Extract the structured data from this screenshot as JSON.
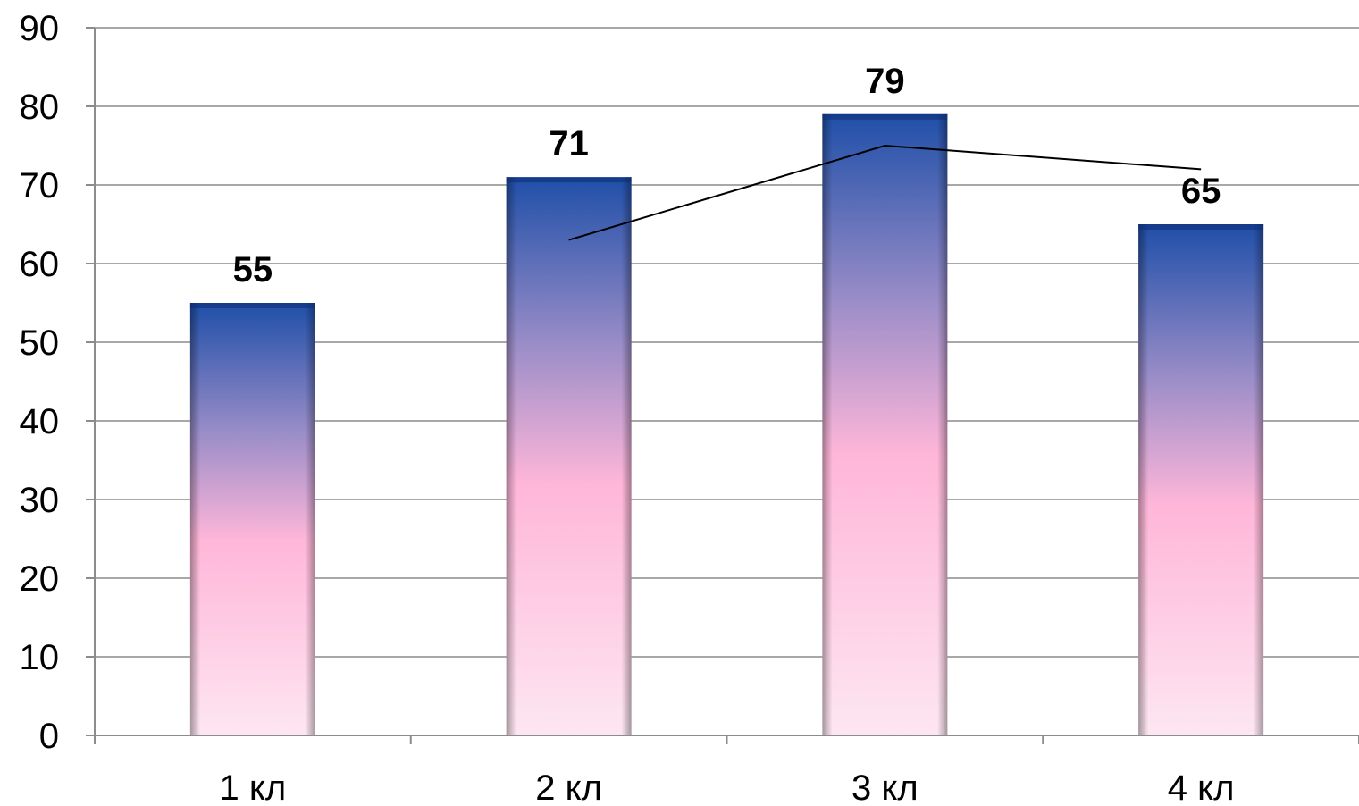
{
  "chart_data": {
    "type": "bar",
    "categories": [
      "1 кл",
      "2 кл",
      "3 кл",
      "4 кл"
    ],
    "series": [
      {
        "values": [
          55,
          71,
          79,
          65
        ]
      }
    ],
    "data_labels": [
      "55",
      "71",
      "79",
      "65"
    ],
    "trendline": {
      "type": "line",
      "categories": [
        "2 кл",
        "3 кл",
        "4 кл"
      ],
      "values": [
        63,
        75,
        72
      ]
    },
    "ylim": [
      0,
      90
    ],
    "y_ticks": [
      0,
      10,
      20,
      30,
      40,
      50,
      60,
      70,
      80,
      90
    ],
    "y_tick_labels": [
      "0",
      "10",
      "20",
      "30",
      "40",
      "50",
      "60",
      "70",
      "80",
      "90"
    ],
    "grid": true,
    "legend": "none",
    "title": "",
    "xlabel": "",
    "ylabel": "",
    "colors": {
      "bar_top": "#1f4fa8",
      "bar_mid": "#9a8dc8",
      "bar_pink": "#ffb6d9",
      "bar_bottom": "#fde6f1",
      "trend": "#000000",
      "grid": "#8c8c8c"
    }
  }
}
